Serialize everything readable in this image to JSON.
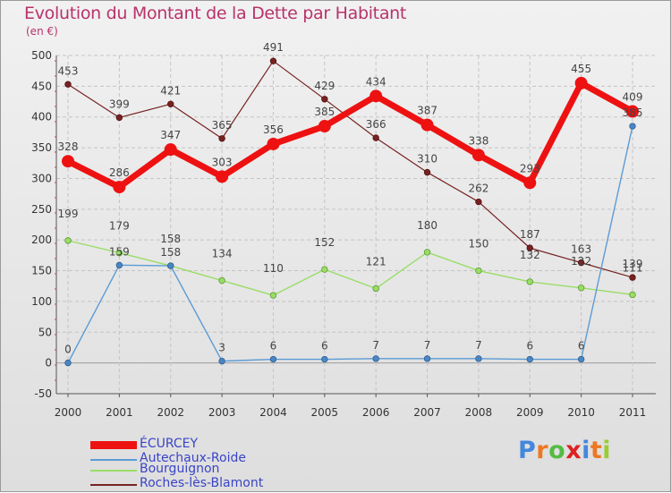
{
  "chart_data": {
    "type": "line",
    "title": "Evolution du Montant de la Dette par Habitant",
    "ylabel": "(en €)",
    "ylim": [
      -50,
      500
    ],
    "yticks": [
      -50,
      0,
      50,
      100,
      150,
      200,
      250,
      300,
      350,
      400,
      450,
      500
    ],
    "categories": [
      "2000",
      "2001",
      "2002",
      "2003",
      "2004",
      "2005",
      "2006",
      "2007",
      "2008",
      "2009",
      "2010",
      "2011"
    ],
    "series": [
      {
        "name": "ÉCURCEY",
        "color": "#ee1111",
        "values": [
          328,
          286,
          347,
          303,
          356,
          385,
          434,
          387,
          338,
          293,
          455,
          409
        ]
      },
      {
        "name": "Autechaux-Roide",
        "color": "#5b9bd5",
        "values": [
          0,
          159,
          158,
          3,
          6,
          6,
          7,
          7,
          7,
          6,
          6,
          385
        ]
      },
      {
        "name": "Bourguignon",
        "color": "#99dd66",
        "values": [
          199,
          179,
          158,
          134,
          110,
          152,
          121,
          180,
          150,
          132,
          122,
          111
        ]
      },
      {
        "name": "Roches-lès-Blamont",
        "color": "#772222",
        "values": [
          453,
          399,
          421,
          365,
          491,
          429,
          366,
          310,
          262,
          187,
          163,
          139
        ]
      }
    ]
  },
  "brand": {
    "chars": [
      "P",
      "r",
      "o",
      "x",
      "i",
      "t",
      "i"
    ],
    "colors": [
      "#4488dd",
      "#ee7722",
      "#55bb44",
      "#dd2222",
      "#4488dd",
      "#ee7722",
      "#99cc33"
    ]
  }
}
